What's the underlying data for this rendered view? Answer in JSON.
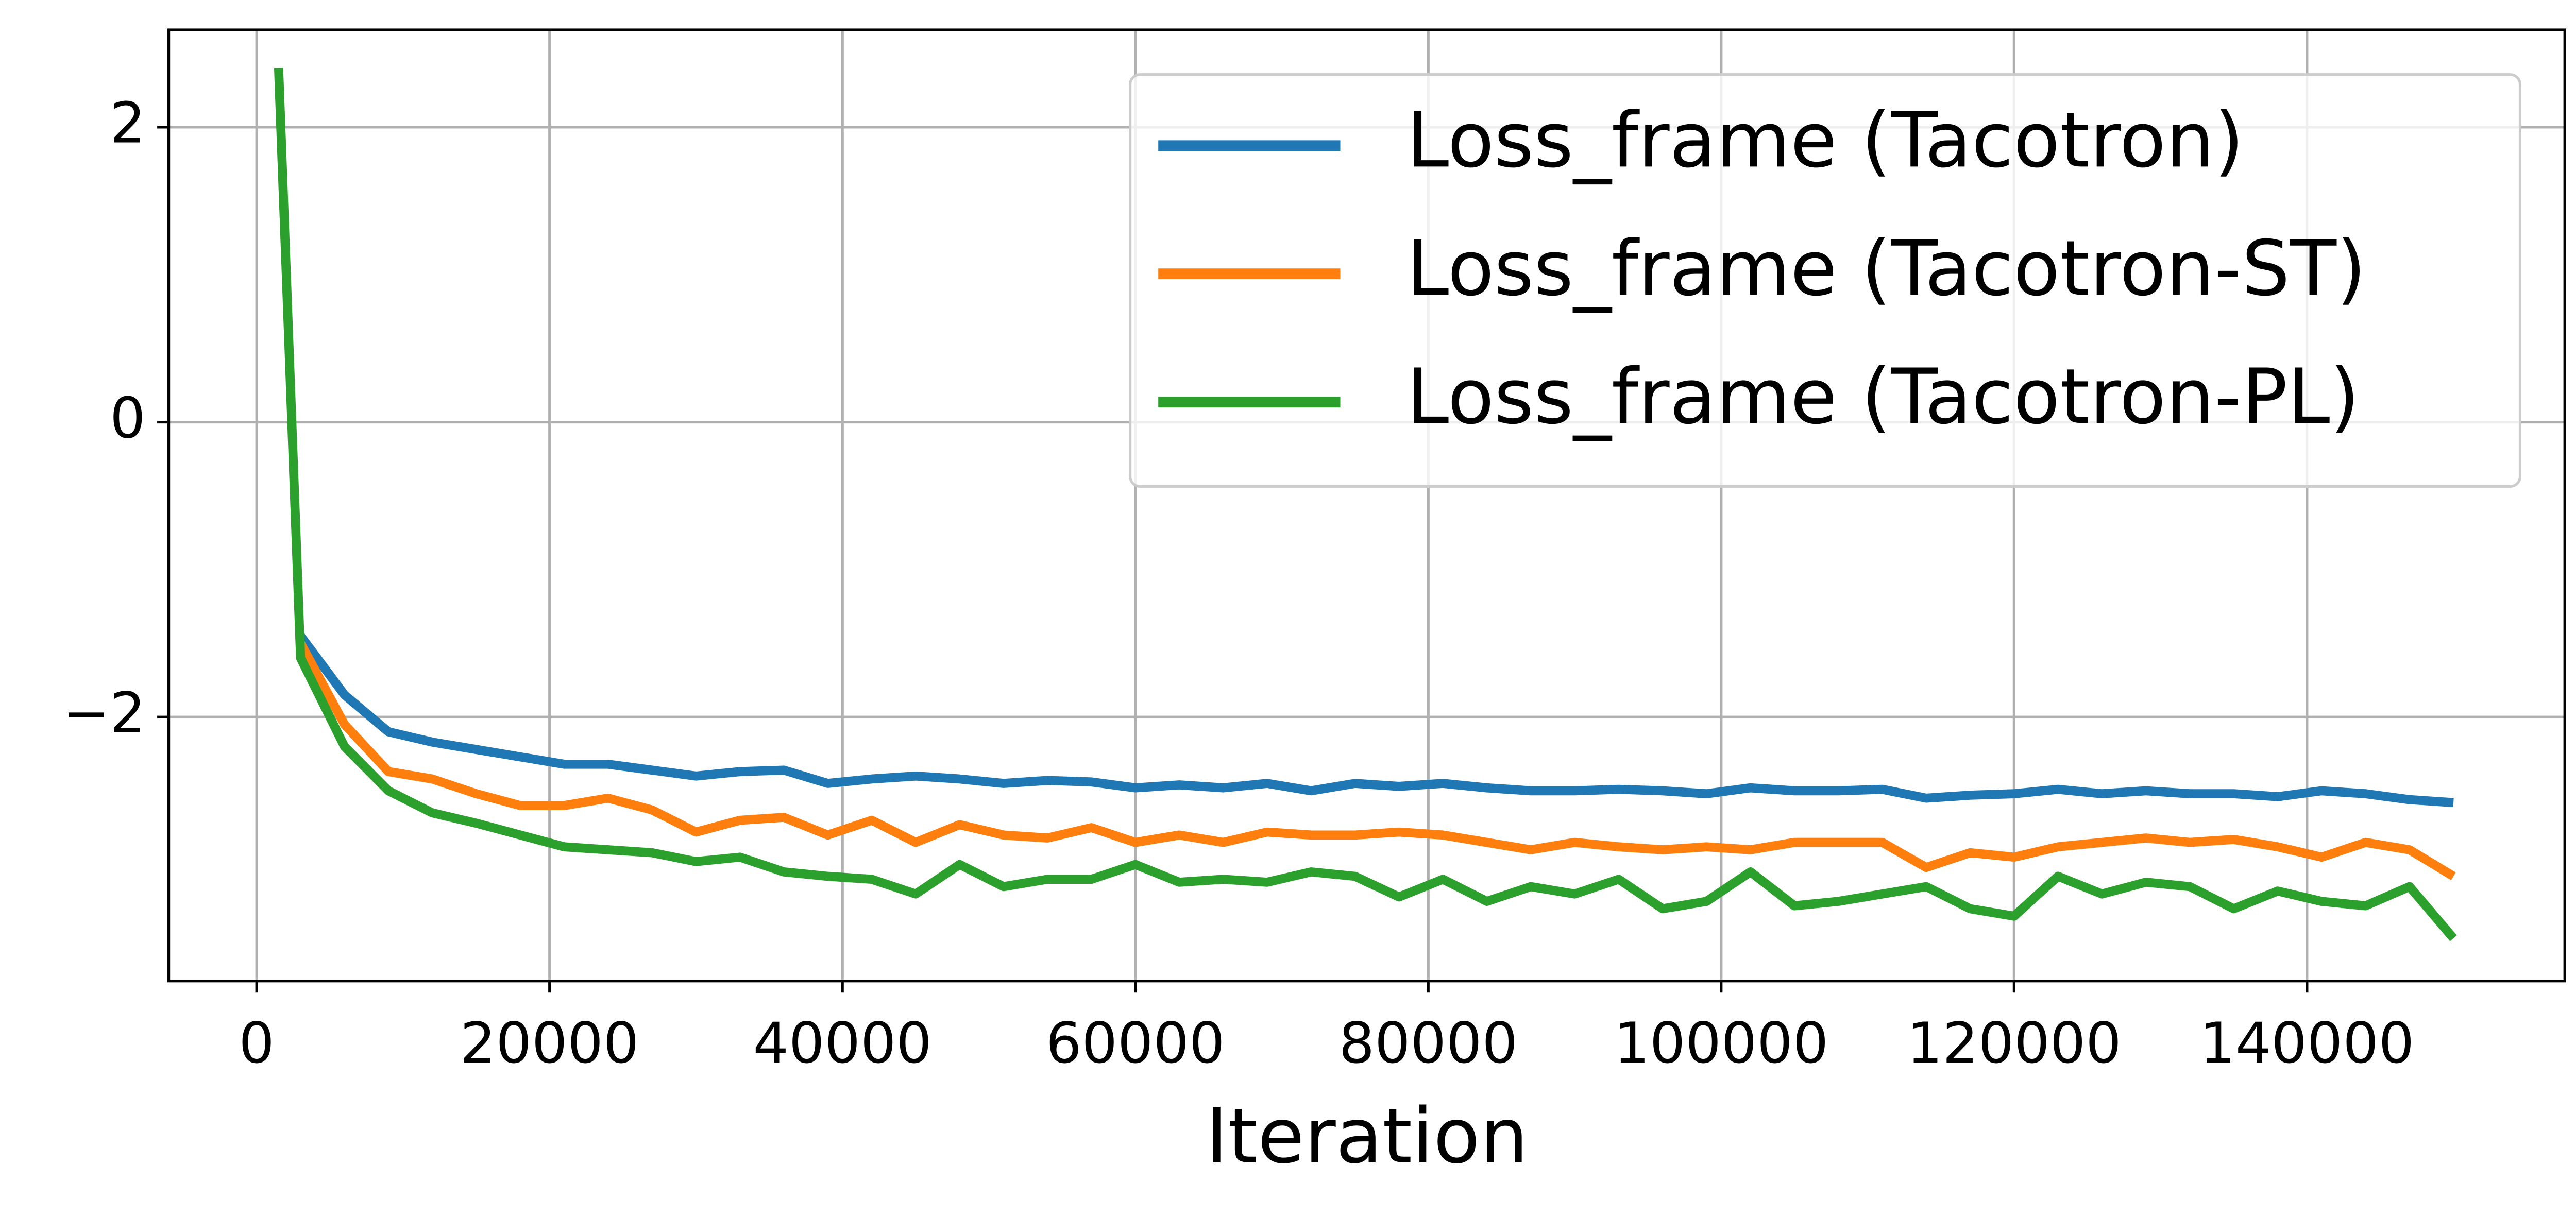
{
  "chart_data": {
    "type": "line",
    "xlabel": "Iteration",
    "x": [
      1500,
      3000,
      6000,
      9000,
      12000,
      15000,
      18000,
      21000,
      24000,
      27000,
      30000,
      33000,
      36000,
      39000,
      42000,
      45000,
      48000,
      51000,
      54000,
      57000,
      60000,
      63000,
      66000,
      69000,
      72000,
      75000,
      78000,
      81000,
      84000,
      87000,
      90000,
      93000,
      96000,
      99000,
      102000,
      105000,
      108000,
      111000,
      114000,
      117000,
      120000,
      123000,
      126000,
      129000,
      132000,
      135000,
      138000,
      141000,
      144000,
      147000,
      150000
    ],
    "series": [
      {
        "name": "Loss_frame (Tacotron)",
        "color": "#1f77b4",
        "values": [
          null,
          -1.45,
          -1.85,
          -2.1,
          -2.17,
          -2.22,
          -2.27,
          -2.32,
          -2.32,
          -2.36,
          -2.4,
          -2.37,
          -2.36,
          -2.45,
          -2.42,
          -2.4,
          -2.42,
          -2.45,
          -2.43,
          -2.44,
          -2.48,
          -2.46,
          -2.48,
          -2.45,
          -2.5,
          -2.45,
          -2.47,
          -2.45,
          -2.48,
          -2.5,
          -2.5,
          -2.49,
          -2.5,
          -2.52,
          -2.48,
          -2.5,
          -2.5,
          -2.49,
          -2.55,
          -2.53,
          -2.52,
          -2.49,
          -2.52,
          -2.5,
          -2.52,
          -2.52,
          -2.54,
          -2.5,
          -2.52,
          -2.56,
          -2.58
        ]
      },
      {
        "name": "Loss_frame (Tacotron-ST)",
        "color": "#ff7f0e",
        "values": [
          null,
          -1.5,
          -2.05,
          -2.37,
          -2.42,
          -2.52,
          -2.6,
          -2.6,
          -2.55,
          -2.63,
          -2.78,
          -2.7,
          -2.68,
          -2.8,
          -2.7,
          -2.85,
          -2.73,
          -2.8,
          -2.82,
          -2.75,
          -2.85,
          -2.8,
          -2.85,
          -2.78,
          -2.8,
          -2.8,
          -2.78,
          -2.8,
          -2.85,
          -2.9,
          -2.85,
          -2.88,
          -2.9,
          -2.88,
          -2.9,
          -2.85,
          -2.85,
          -2.85,
          -3.02,
          -2.92,
          -2.95,
          -2.88,
          -2.85,
          -2.82,
          -2.85,
          -2.83,
          -2.88,
          -2.95,
          -2.85,
          -2.9,
          -3.08
        ]
      },
      {
        "name": "Loss_frame (Tacotron-PL)",
        "color": "#2ca02c",
        "values": [
          2.4,
          -1.6,
          -2.2,
          -2.5,
          -2.65,
          -2.72,
          -2.8,
          -2.88,
          -2.9,
          -2.92,
          -2.98,
          -2.95,
          -3.05,
          -3.08,
          -3.1,
          -3.2,
          -3.0,
          -3.15,
          -3.1,
          -3.1,
          -3.0,
          -3.12,
          -3.1,
          -3.12,
          -3.05,
          -3.08,
          -3.22,
          -3.1,
          -3.25,
          -3.15,
          -3.2,
          -3.1,
          -3.3,
          -3.25,
          -3.05,
          -3.28,
          -3.25,
          -3.2,
          -3.15,
          -3.3,
          -3.35,
          -3.08,
          -3.2,
          -3.12,
          -3.15,
          -3.3,
          -3.18,
          -3.25,
          -3.28,
          -3.15,
          -3.5
        ]
      }
    ],
    "xlim": [
      -6000,
      157600
    ],
    "ylim": [
      -3.79,
      2.66
    ],
    "xticks": [
      0,
      20000,
      40000,
      60000,
      80000,
      100000,
      120000,
      140000
    ],
    "yticks": [
      {
        "value": -2,
        "label": "−2"
      },
      0,
      2
    ],
    "grid": true,
    "legend": "upper right"
  }
}
